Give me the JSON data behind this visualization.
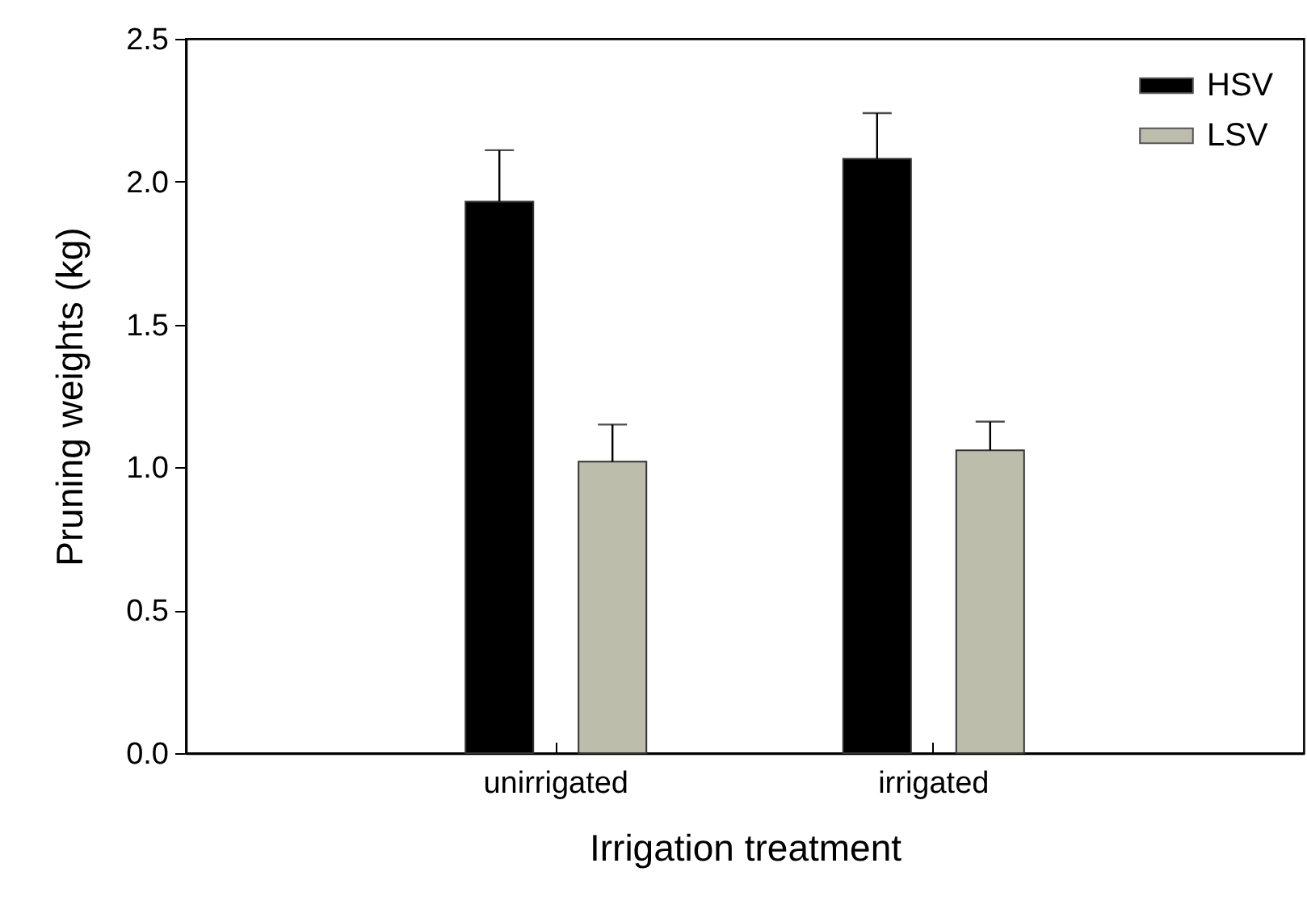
{
  "chart_data": {
    "type": "bar",
    "xlabel": "Irrigation treatment",
    "ylabel": "Pruning weights (kg)",
    "categories": [
      "unirrigated",
      "irrigated"
    ],
    "series": [
      {
        "name": "HSV",
        "color": "#000000",
        "values": [
          1.93,
          2.08
        ],
        "errors": [
          0.18,
          0.16
        ]
      },
      {
        "name": "LSV",
        "color": "#bcbdab",
        "values": [
          1.02,
          1.06
        ],
        "errors": [
          0.13,
          0.1
        ]
      }
    ],
    "ylim": [
      0,
      2.5
    ],
    "yticks": [
      {
        "value": 0,
        "label": "0.0"
      },
      0.5,
      {
        "value": 1,
        "label": "1.0"
      },
      1.5,
      {
        "value": 2,
        "label": "2.0"
      },
      2.5
    ],
    "legend": "top right"
  }
}
